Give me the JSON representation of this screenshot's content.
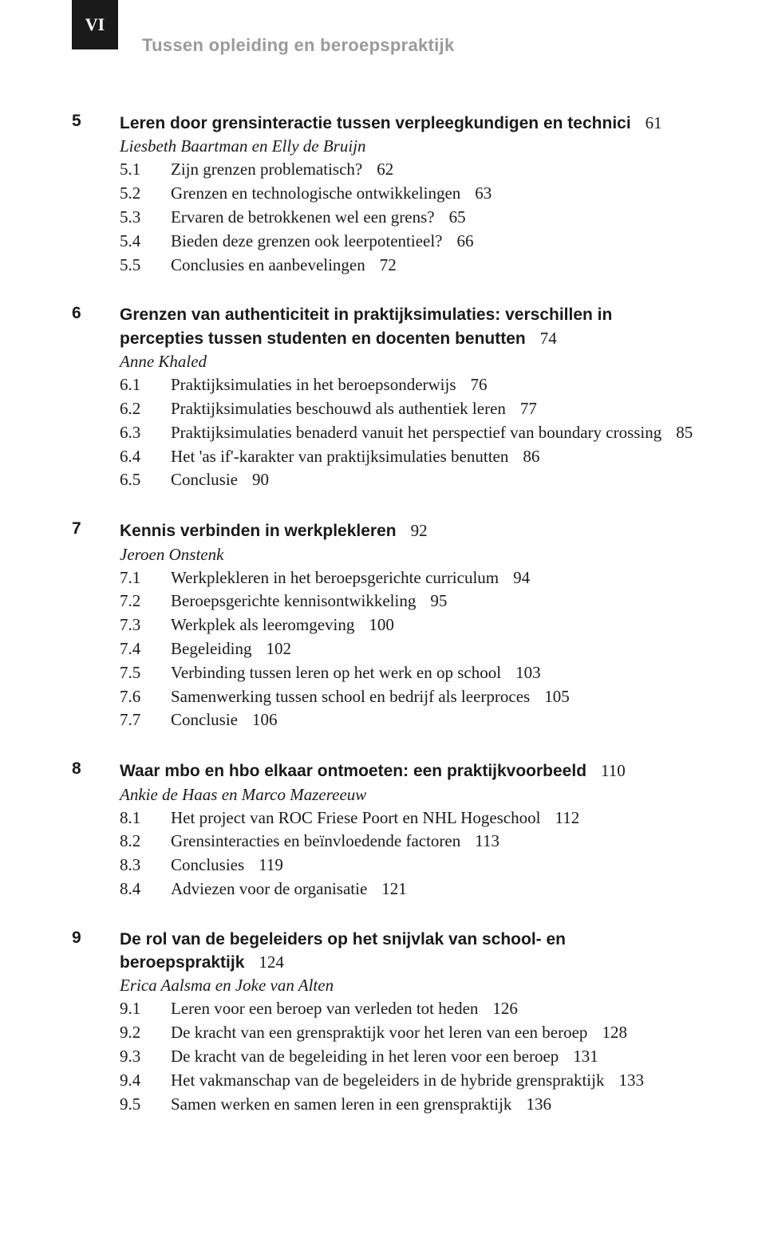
{
  "page_marker": "VI",
  "running_title": "Tussen opleiding en beroepspraktijk",
  "chapters": [
    {
      "num": "5",
      "title": "Leren door grensinteractie tussen verpleegkundigen en technici",
      "page": "61",
      "author": "Liesbeth Baartman en Elly de Bruijn",
      "sections": [
        {
          "num": "5.1",
          "title": "Zijn grenzen problematisch?",
          "page": "62"
        },
        {
          "num": "5.2",
          "title": "Grenzen en technologische ontwikkelingen",
          "page": "63"
        },
        {
          "num": "5.3",
          "title": "Ervaren de betrokkenen wel een grens?",
          "page": "65"
        },
        {
          "num": "5.4",
          "title": "Bieden deze grenzen ook leerpotentieel?",
          "page": "66"
        },
        {
          "num": "5.5",
          "title": "Conclusies en aanbevelingen",
          "page": "72"
        }
      ]
    },
    {
      "num": "6",
      "title": "Grenzen van authenticiteit in praktijksimulaties: verschillen in percepties tussen studenten en docenten benutten",
      "page": "74",
      "author": "Anne Khaled",
      "sections": [
        {
          "num": "6.1",
          "title": "Praktijksimulaties in het beroepsonderwijs",
          "page": "76"
        },
        {
          "num": "6.2",
          "title": "Praktijksimulaties beschouwd als authentiek leren",
          "page": "77"
        },
        {
          "num": "6.3",
          "title": "Praktijksimulaties benaderd vanuit het perspectief van boundary crossing",
          "page": "85"
        },
        {
          "num": "6.4",
          "title": "Het 'as if'-karakter van praktijksimulaties benutten",
          "page": "86"
        },
        {
          "num": "6.5",
          "title": "Conclusie",
          "page": "90"
        }
      ]
    },
    {
      "num": "7",
      "title": "Kennis verbinden in werkplekleren",
      "page": "92",
      "author": "Jeroen Onstenk",
      "sections": [
        {
          "num": "7.1",
          "title": "Werkplekleren in het beroepsgerichte curriculum",
          "page": "94"
        },
        {
          "num": "7.2",
          "title": "Beroepsgerichte kennisontwikkeling",
          "page": "95"
        },
        {
          "num": "7.3",
          "title": "Werkplek als leeromgeving",
          "page": "100"
        },
        {
          "num": "7.4",
          "title": "Begeleiding",
          "page": "102"
        },
        {
          "num": "7.5",
          "title": "Verbinding tussen leren op het werk en op school",
          "page": "103"
        },
        {
          "num": "7.6",
          "title": "Samenwerking tussen school en bedrijf als leerproces",
          "page": "105"
        },
        {
          "num": "7.7",
          "title": "Conclusie",
          "page": "106"
        }
      ]
    },
    {
      "num": "8",
      "title": "Waar mbo en hbo elkaar ontmoeten: een praktijkvoorbeeld",
      "page": "110",
      "author": "Ankie de Haas en Marco Mazereeuw",
      "sections": [
        {
          "num": "8.1",
          "title": "Het project van ROC Friese Poort en NHL Hogeschool",
          "page": "112"
        },
        {
          "num": "8.2",
          "title": "Grensinteracties en beïnvloedende factoren",
          "page": "113"
        },
        {
          "num": "8.3",
          "title": "Conclusies",
          "page": "119"
        },
        {
          "num": "8.4",
          "title": "Adviezen voor de organisatie",
          "page": "121"
        }
      ]
    },
    {
      "num": "9",
      "title": "De rol van de begeleiders op het snijvlak van school- en beroepspraktijk",
      "page": "124",
      "author": "Erica Aalsma en Joke van Alten",
      "sections": [
        {
          "num": "9.1",
          "title": "Leren voor een beroep van verleden tot heden",
          "page": "126"
        },
        {
          "num": "9.2",
          "title": "De kracht van een grenspraktijk voor het leren van een beroep",
          "page": "128"
        },
        {
          "num": "9.3",
          "title": "De kracht van de begeleiding in het leren voor een beroep",
          "page": "131"
        },
        {
          "num": "9.4",
          "title": "Het vakmanschap van de begeleiders in de hybride grenspraktijk",
          "page": "133"
        },
        {
          "num": "9.5",
          "title": "Samen werken en samen leren in een grenspraktijk",
          "page": "136"
        }
      ]
    }
  ]
}
